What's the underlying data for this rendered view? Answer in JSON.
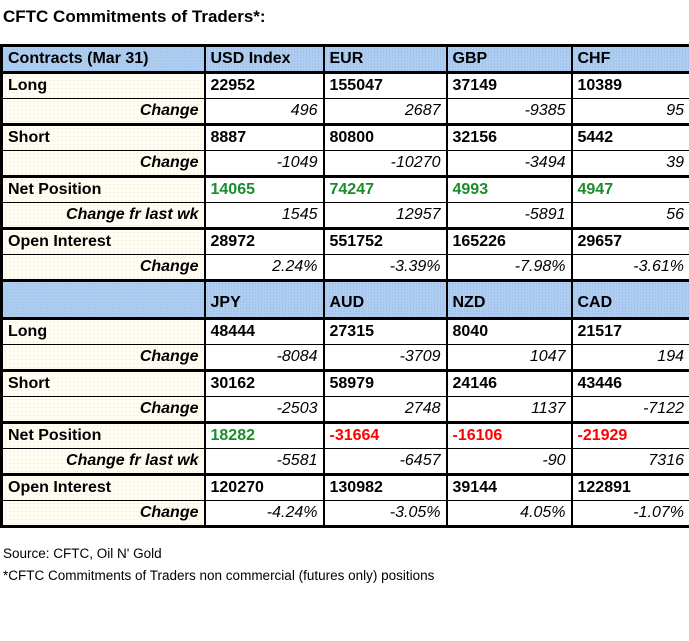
{
  "title": "CFTC Commitments of Traders*:",
  "colors": {
    "header_blue": "#aecdf0",
    "label_cream": "#fffdf2",
    "positive_green": "#1a8c2c",
    "negative_red": "#ff0000"
  },
  "table": {
    "sections": [
      {
        "header": [
          "Contracts (Mar 31)",
          "USD Index",
          "EUR",
          "GBP",
          "CHF"
        ],
        "rows": [
          {
            "label": "Long",
            "values": [
              "22952",
              "155047",
              "37149",
              "10389"
            ]
          },
          {
            "label": "Change",
            "values": [
              "496",
              "2687",
              "-9385",
              "95"
            ]
          },
          {
            "label": "Short",
            "values": [
              "8887",
              "80800",
              "32156",
              "5442"
            ]
          },
          {
            "label": "Change",
            "values": [
              "-1049",
              "-10270",
              "-3494",
              "39"
            ]
          },
          {
            "label": "Net Position",
            "values": [
              "14065",
              "74247",
              "4993",
              "4947"
            ],
            "value_colors": [
              "#1a8c2c",
              "#1a8c2c",
              "#1a8c2c",
              "#1a8c2c"
            ]
          },
          {
            "label": "Change fr last wk",
            "values": [
              "1545",
              "12957",
              "-5891",
              "56"
            ]
          },
          {
            "label": "Open Interest",
            "values": [
              "28972",
              "551752",
              "165226",
              "29657"
            ]
          },
          {
            "label": "Change",
            "values": [
              "2.24%",
              "-3.39%",
              "-7.98%",
              "-3.61%"
            ]
          }
        ]
      },
      {
        "header": [
          "",
          "JPY",
          "AUD",
          "NZD",
          "CAD"
        ],
        "rows": [
          {
            "label": "Long",
            "values": [
              "48444",
              "27315",
              "8040",
              "21517"
            ]
          },
          {
            "label": "Change",
            "values": [
              "-8084",
              "-3709",
              "1047",
              "194"
            ]
          },
          {
            "label": "Short",
            "values": [
              "30162",
              "58979",
              "24146",
              "43446"
            ]
          },
          {
            "label": "Change",
            "values": [
              "-2503",
              "2748",
              "1137",
              "-7122"
            ]
          },
          {
            "label": "Net Position",
            "values": [
              "18282",
              "-31664",
              "-16106",
              "-21929"
            ],
            "value_colors": [
              "#1a8c2c",
              "#ff0000",
              "#ff0000",
              "#ff0000"
            ]
          },
          {
            "label": "Change fr last wk",
            "values": [
              "-5581",
              "-6457",
              "-90",
              "7316"
            ]
          },
          {
            "label": "Open Interest",
            "values": [
              "120270",
              "130982",
              "39144",
              "122891"
            ]
          },
          {
            "label": "Change",
            "values": [
              "-4.24%",
              "-3.05%",
              "4.05%",
              "-1.07%"
            ]
          }
        ]
      }
    ]
  },
  "footer": {
    "source": "Source: CFTC, Oil N' Gold",
    "note": "*CFTC Commitments of Traders non commercial (futures only) positions"
  }
}
